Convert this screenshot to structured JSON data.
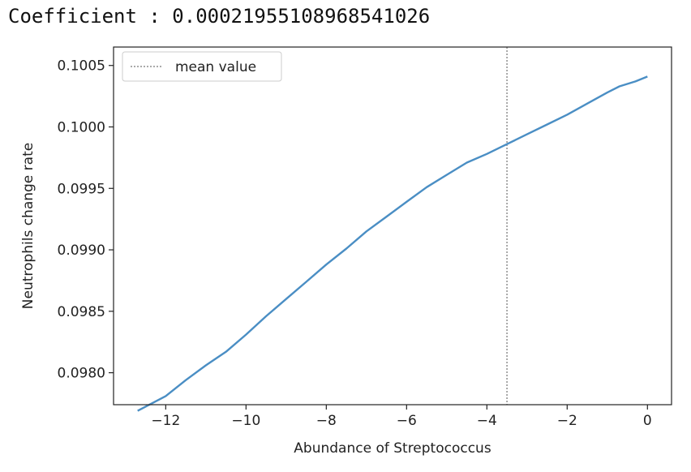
{
  "header": {
    "text": "Coefficient : 0.00021955108968541026"
  },
  "colors": {
    "series_line": "#4a8ec4",
    "mean_line": "#555555",
    "axis": "#222222",
    "background": "#ffffff"
  },
  "chart_data": {
    "type": "line",
    "title": "",
    "xlabel": "Abundance of Streptococcus",
    "ylabel": "Neutrophils change rate",
    "xlim": [
      -13.3,
      0.6
    ],
    "ylim": [
      0.09774,
      0.10065
    ],
    "xticks": [
      -12,
      -10,
      -8,
      -6,
      -4,
      -2,
      0
    ],
    "xtick_labels": [
      "−12",
      "−10",
      "−8",
      "−6",
      "−4",
      "−2",
      "0"
    ],
    "yticks": [
      0.098,
      0.0985,
      0.099,
      0.0995,
      0.1,
      0.1005
    ],
    "ytick_labels": [
      "0.0980",
      "0.0985",
      "0.0990",
      "0.0995",
      "0.1000",
      "0.1005"
    ],
    "grid": false,
    "legend_position": "top-left",
    "legend_entries": [
      "mean value"
    ],
    "mean_value_x": -3.5,
    "series": [
      {
        "x": [
          -12.7,
          -12.0,
          -11.5,
          -11.0,
          -10.5,
          -10.0,
          -9.5,
          -9.0,
          -8.5,
          -8.0,
          -7.5,
          -7.0,
          -6.5,
          -6.0,
          -5.5,
          -5.0,
          -4.5,
          -4.0,
          -3.5,
          -3.0,
          -2.5,
          -2.0,
          -1.5,
          -1.0,
          -0.7,
          -0.3,
          0.0
        ],
        "y": [
          0.09769,
          0.09781,
          0.09794,
          0.09806,
          0.09817,
          0.09831,
          0.09846,
          0.0986,
          0.09874,
          0.09888,
          0.09901,
          0.09915,
          0.09927,
          0.09939,
          0.09951,
          0.09961,
          0.09971,
          0.09978,
          0.09986,
          0.09994,
          0.10002,
          0.1001,
          0.10019,
          0.10028,
          0.10033,
          0.10037,
          0.10041
        ]
      }
    ]
  }
}
